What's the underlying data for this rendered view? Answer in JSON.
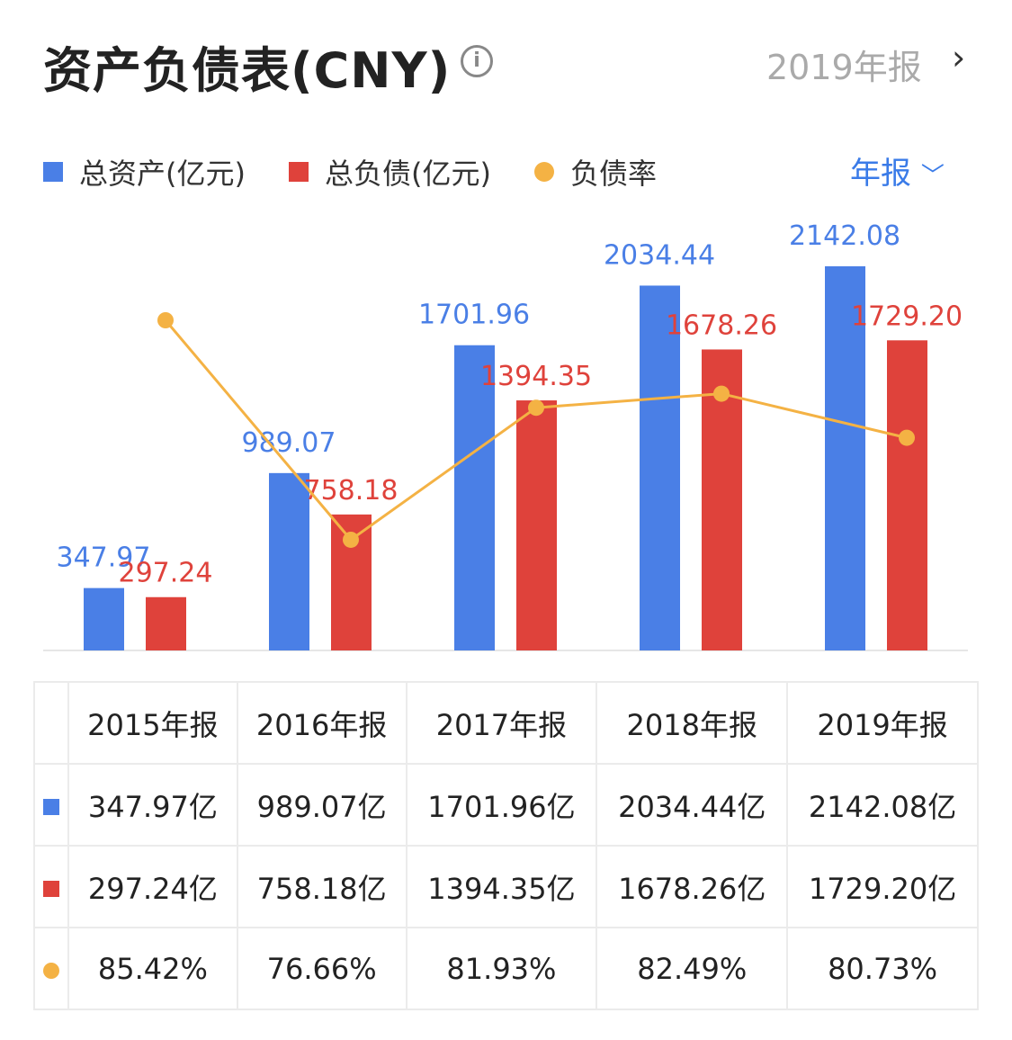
{
  "header": {
    "title": "资产负债表(CNY)",
    "info_icon": "info-icon",
    "period": "2019年报",
    "chevron": "chevron-right-icon"
  },
  "legend": {
    "assets": "总资产(亿元)",
    "liabilities": "总负债(亿元)",
    "ratio": "负债率",
    "frequency": "年报"
  },
  "colors": {
    "assets": "#4a7fe6",
    "liabilities": "#df423b",
    "ratio": "#f4b244"
  },
  "chart_data": {
    "type": "bar+line",
    "categories": [
      "2015年报",
      "2016年报",
      "2017年报",
      "2018年报",
      "2019年报"
    ],
    "series": [
      {
        "name": "总资产(亿元)",
        "type": "bar",
        "values": [
          347.97,
          989.07,
          1701.96,
          2034.44,
          2142.08
        ],
        "labels": [
          "347.97",
          "989.07",
          "1701.96",
          "2034.44",
          "2142.08"
        ]
      },
      {
        "name": "总负债(亿元)",
        "type": "bar",
        "values": [
          297.24,
          758.18,
          1394.35,
          1678.26,
          1729.2
        ],
        "labels": [
          "297.24",
          "758.18",
          "1394.35",
          "1678.26",
          "1729.20"
        ]
      },
      {
        "name": "负债率",
        "type": "line",
        "values": [
          85.42,
          76.66,
          81.93,
          82.49,
          80.73
        ],
        "unit": "%"
      }
    ]
  },
  "table": {
    "headers": [
      "2015年报",
      "2016年报",
      "2017年报",
      "2018年报",
      "2019年报"
    ],
    "assets": [
      "347.97亿",
      "989.07亿",
      "1701.96亿",
      "2034.44亿",
      "2142.08亿"
    ],
    "liabilities": [
      "297.24亿",
      "758.18亿",
      "1394.35亿",
      "1678.26亿",
      "1729.20亿"
    ],
    "ratio": [
      "85.42%",
      "76.66%",
      "81.93%",
      "82.49%",
      "80.73%"
    ]
  }
}
